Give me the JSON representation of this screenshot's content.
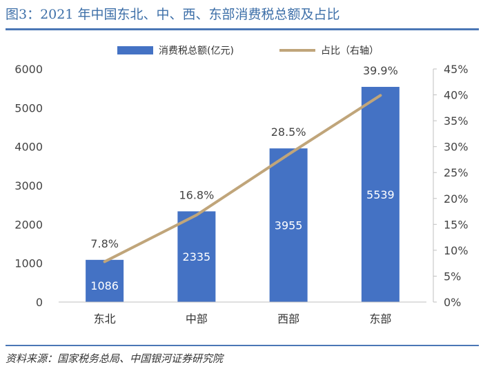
{
  "figure": {
    "title": "图3：2021 年中国东北、中、西、东部消费税总额及占比",
    "source": "资料来源：国家税务总局、中国银河证券研究院"
  },
  "chart_data": {
    "type": "bar",
    "categories": [
      "东北",
      "中部",
      "西部",
      "东部"
    ],
    "series": [
      {
        "name": "消费税总额(亿元)",
        "type": "bar",
        "axis": "left",
        "values": [
          1086,
          2335,
          3955,
          5539
        ],
        "color": "#4472c4"
      },
      {
        "name": "占比（右轴）",
        "type": "line",
        "axis": "right",
        "values": [
          7.8,
          16.8,
          28.5,
          39.9
        ],
        "color": "#c0a57a"
      }
    ],
    "bar_labels": [
      "1086",
      "2335",
      "3955",
      "5539"
    ],
    "line_labels": [
      "7.8%",
      "16.8%",
      "28.5%",
      "39.9%"
    ],
    "y_left": {
      "min": 0,
      "max": 6000,
      "ticks": [
        "0",
        "1000",
        "2000",
        "3000",
        "4000",
        "5000",
        "6000"
      ]
    },
    "y_right": {
      "min": 0,
      "max": 45,
      "ticks": [
        "0%",
        "5%",
        "10%",
        "15%",
        "20%",
        "25%",
        "30%",
        "35%",
        "40%",
        "45%"
      ]
    },
    "grid": false,
    "legend": "top-center"
  }
}
